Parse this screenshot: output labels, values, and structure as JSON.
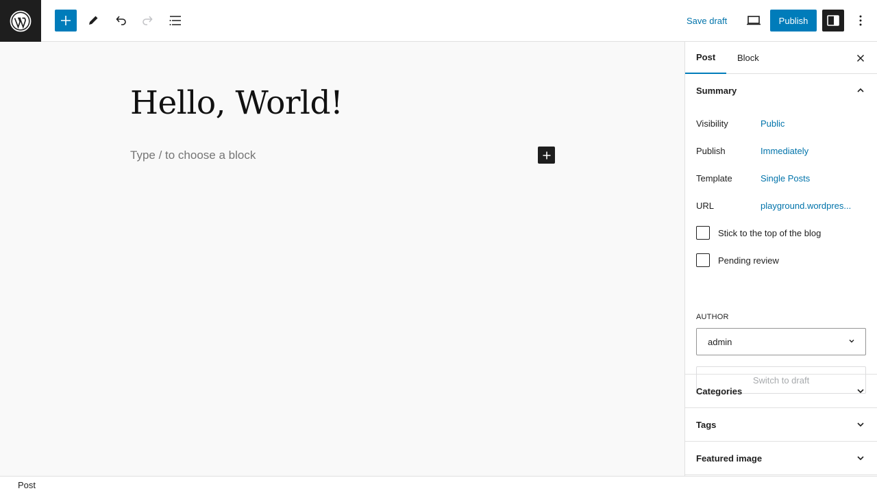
{
  "toolbar": {
    "logo_icon": "wordpress-logo",
    "inserter_icon": "plus-icon",
    "tools_icon": "pencil-icon",
    "undo_icon": "undo-icon",
    "redo_icon": "redo-icon",
    "list_view_icon": "list-view-icon",
    "save_draft_label": "Save draft",
    "preview_icon": "desktop-icon",
    "publish_label": "Publish",
    "settings_icon": "sidebar-icon",
    "more_icon": "more-vertical-icon",
    "accent_color": "#007cba"
  },
  "editor": {
    "title": "Hello, World!",
    "block_placeholder": "Type / to choose a block"
  },
  "sidebar": {
    "tabs": [
      {
        "label": "Post",
        "active": true
      },
      {
        "label": "Block",
        "active": false
      }
    ],
    "summary": {
      "title": "Summary",
      "expanded": true,
      "rows": [
        {
          "label": "Visibility",
          "value": "Public"
        },
        {
          "label": "Publish",
          "value": "Immediately"
        },
        {
          "label": "Template",
          "value": "Single Posts"
        },
        {
          "label": "URL",
          "value": "playground.wordpres..."
        }
      ],
      "checkboxes": [
        {
          "label": "Stick to the top of the blog",
          "checked": false
        },
        {
          "label": "Pending review",
          "checked": false
        }
      ],
      "author_label": "AUTHOR",
      "author_value": "admin",
      "switch_draft_label": "Switch to draft"
    },
    "panels": [
      {
        "title": "Categories",
        "expanded": false
      },
      {
        "title": "Tags",
        "expanded": false
      },
      {
        "title": "Featured image",
        "expanded": false
      }
    ]
  },
  "footer": {
    "breadcrumb": "Post"
  }
}
